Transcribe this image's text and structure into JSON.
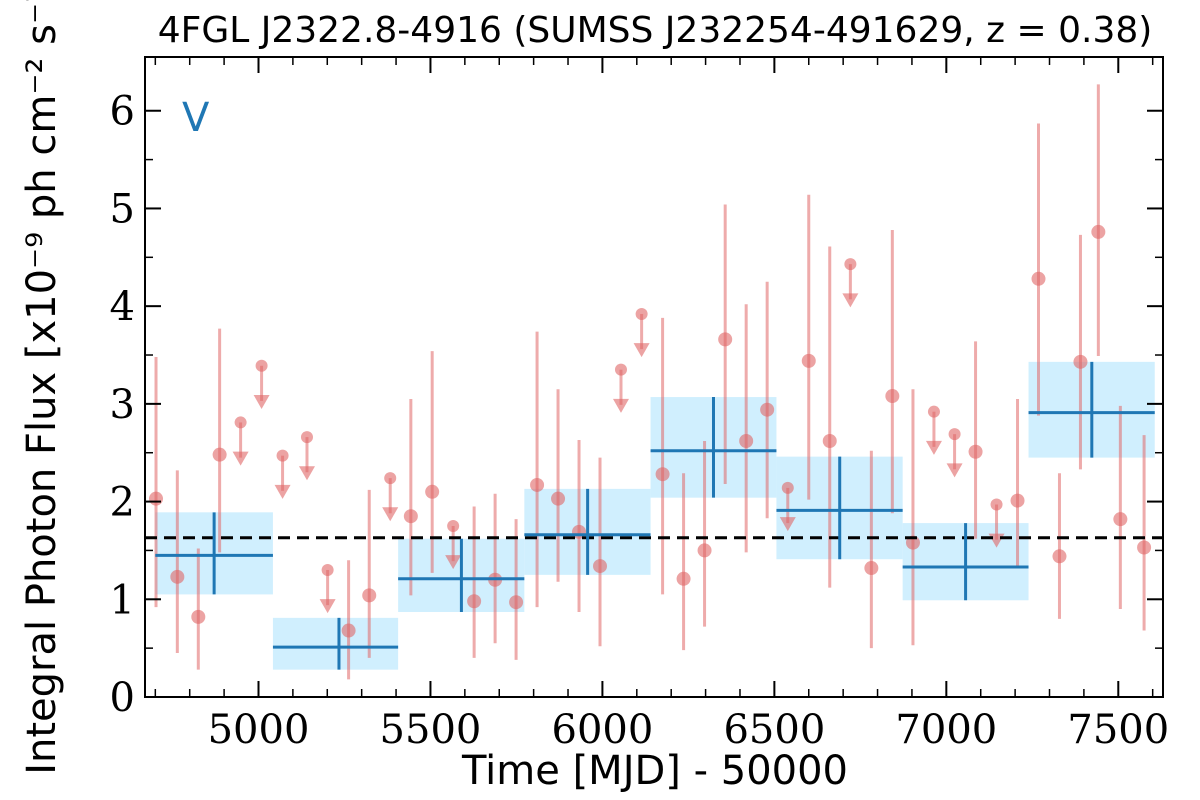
{
  "chart_data": {
    "type": "scatter",
    "title": "4FGL J2322.8-4916 (SUMSS J232254-491629, z = 0.38)",
    "xlabel": "Time [MJD] - 50000",
    "ylabel": "Integral Photon Flux [x10⁻⁹ ph cm⁻² s⁻¹]",
    "panel_label": "V",
    "xlim": [
      4670,
      7630
    ],
    "ylim": [
      0,
      6.55
    ],
    "x_ticks": [
      5000,
      5500,
      6000,
      6500,
      7000,
      7500
    ],
    "x_tick_labels": [
      "5000",
      "5500",
      "6000",
      "6500",
      "7000",
      "7500"
    ],
    "y_ticks": [
      0,
      1,
      2,
      3,
      4,
      5,
      6
    ],
    "y_tick_labels": [
      "0",
      "1",
      "2",
      "3",
      "4",
      "5",
      "6"
    ],
    "mean_flux": 1.63,
    "colors": {
      "points": "#e06666",
      "bins_fill": "#cdeefe",
      "bins_line": "#1f77b4",
      "mean_line": "#000000"
    },
    "series": [
      {
        "kind": "detections",
        "points": [
          {
            "x": 4702,
            "y": 2.03,
            "lo": 0.92,
            "hi": 3.48
          },
          {
            "x": 4764,
            "y": 1.23,
            "lo": 0.45,
            "hi": 2.32
          },
          {
            "x": 4825,
            "y": 0.82,
            "lo": 0.28,
            "hi": 1.52
          },
          {
            "x": 4887,
            "y": 2.48,
            "lo": 1.48,
            "hi": 3.77
          },
          {
            "x": 5262,
            "y": 0.68,
            "lo": 0.18,
            "hi": 1.4
          },
          {
            "x": 5322,
            "y": 1.04,
            "lo": 0.4,
            "hi": 2.12
          },
          {
            "x": 5443,
            "y": 1.85,
            "lo": 1.04,
            "hi": 3.05
          },
          {
            "x": 5505,
            "y": 2.1,
            "lo": 1.27,
            "hi": 3.54
          },
          {
            "x": 5627,
            "y": 0.98,
            "lo": 0.4,
            "hi": 1.95
          },
          {
            "x": 5688,
            "y": 1.2,
            "lo": 0.55,
            "hi": 2.08
          },
          {
            "x": 5749,
            "y": 0.97,
            "lo": 0.38,
            "hi": 1.82
          },
          {
            "x": 5810,
            "y": 2.17,
            "lo": 0.92,
            "hi": 3.74
          },
          {
            "x": 5871,
            "y": 2.03,
            "lo": 1.18,
            "hi": 3.15
          },
          {
            "x": 5932,
            "y": 1.69,
            "lo": 0.87,
            "hi": 2.63
          },
          {
            "x": 5993,
            "y": 1.34,
            "lo": 0.52,
            "hi": 2.45
          },
          {
            "x": 6175,
            "y": 2.28,
            "lo": 1.05,
            "hi": 3.88
          },
          {
            "x": 6236,
            "y": 1.21,
            "lo": 0.48,
            "hi": 2.29
          },
          {
            "x": 6297,
            "y": 1.5,
            "lo": 0.72,
            "hi": 2.62
          },
          {
            "x": 6357,
            "y": 3.66,
            "lo": 2.18,
            "hi": 5.04
          },
          {
            "x": 6418,
            "y": 2.62,
            "lo": 1.48,
            "hi": 4.02
          },
          {
            "x": 6479,
            "y": 2.94,
            "lo": 1.83,
            "hi": 4.25
          },
          {
            "x": 6600,
            "y": 3.44,
            "lo": 2.02,
            "hi": 5.14
          },
          {
            "x": 6661,
            "y": 2.62,
            "lo": 1.12,
            "hi": 4.61
          },
          {
            "x": 6782,
            "y": 1.32,
            "lo": 0.5,
            "hi": 2.52
          },
          {
            "x": 6843,
            "y": 3.08,
            "lo": 1.88,
            "hi": 4.78
          },
          {
            "x": 6903,
            "y": 1.58,
            "lo": 0.53,
            "hi": 3.15
          },
          {
            "x": 7085,
            "y": 2.51,
            "lo": 1.62,
            "hi": 3.64
          },
          {
            "x": 7207,
            "y": 2.01,
            "lo": 1.34,
            "hi": 3.05
          },
          {
            "x": 7268,
            "y": 4.28,
            "lo": 2.88,
            "hi": 5.87
          },
          {
            "x": 7329,
            "y": 1.44,
            "lo": 0.8,
            "hi": 2.29
          },
          {
            "x": 7390,
            "y": 3.43,
            "lo": 2.33,
            "hi": 4.73
          },
          {
            "x": 7442,
            "y": 4.76,
            "lo": 3.49,
            "hi": 6.27
          },
          {
            "x": 7506,
            "y": 1.82,
            "lo": 0.9,
            "hi": 2.98
          },
          {
            "x": 7575,
            "y": 1.53,
            "lo": 0.68,
            "hi": 2.68
          }
        ]
      },
      {
        "kind": "upper_limits",
        "points": [
          {
            "x": 4948,
            "y": 2.81
          },
          {
            "x": 5009,
            "y": 3.39
          },
          {
            "x": 5070,
            "y": 2.47
          },
          {
            "x": 5141,
            "y": 2.66
          },
          {
            "x": 5201,
            "y": 1.3
          },
          {
            "x": 5383,
            "y": 2.24
          },
          {
            "x": 5566,
            "y": 1.75
          },
          {
            "x": 6054,
            "y": 3.35
          },
          {
            "x": 6114,
            "y": 3.92
          },
          {
            "x": 6539,
            "y": 2.14
          },
          {
            "x": 6721,
            "y": 4.43
          },
          {
            "x": 6964,
            "y": 2.92
          },
          {
            "x": 7024,
            "y": 2.69
          },
          {
            "x": 7146,
            "y": 1.97
          }
        ]
      },
      {
        "kind": "bins",
        "bins": [
          {
            "x0": 4700,
            "x1": 5042,
            "xc": 4871,
            "y": 1.45,
            "lo": 1.05,
            "hi": 1.89
          },
          {
            "x0": 5042,
            "x1": 5406,
            "xc": 5234,
            "y": 0.51,
            "lo": 0.28,
            "hi": 0.81
          },
          {
            "x0": 5406,
            "x1": 5773,
            "xc": 5590,
            "y": 1.21,
            "lo": 0.87,
            "hi": 1.62
          },
          {
            "x0": 5773,
            "x1": 6140,
            "xc": 5957,
            "y": 1.66,
            "lo": 1.25,
            "hi": 2.13
          },
          {
            "x0": 6140,
            "x1": 6506,
            "xc": 6323,
            "y": 2.52,
            "lo": 2.04,
            "hi": 3.07
          },
          {
            "x0": 6506,
            "x1": 6873,
            "xc": 6690,
            "y": 1.91,
            "lo": 1.41,
            "hi": 2.46
          },
          {
            "x0": 6873,
            "x1": 7239,
            "xc": 7056,
            "y": 1.33,
            "lo": 0.99,
            "hi": 1.78
          },
          {
            "x0": 7239,
            "x1": 7606,
            "xc": 7423,
            "y": 2.91,
            "lo": 2.45,
            "hi": 3.43
          }
        ]
      }
    ]
  }
}
